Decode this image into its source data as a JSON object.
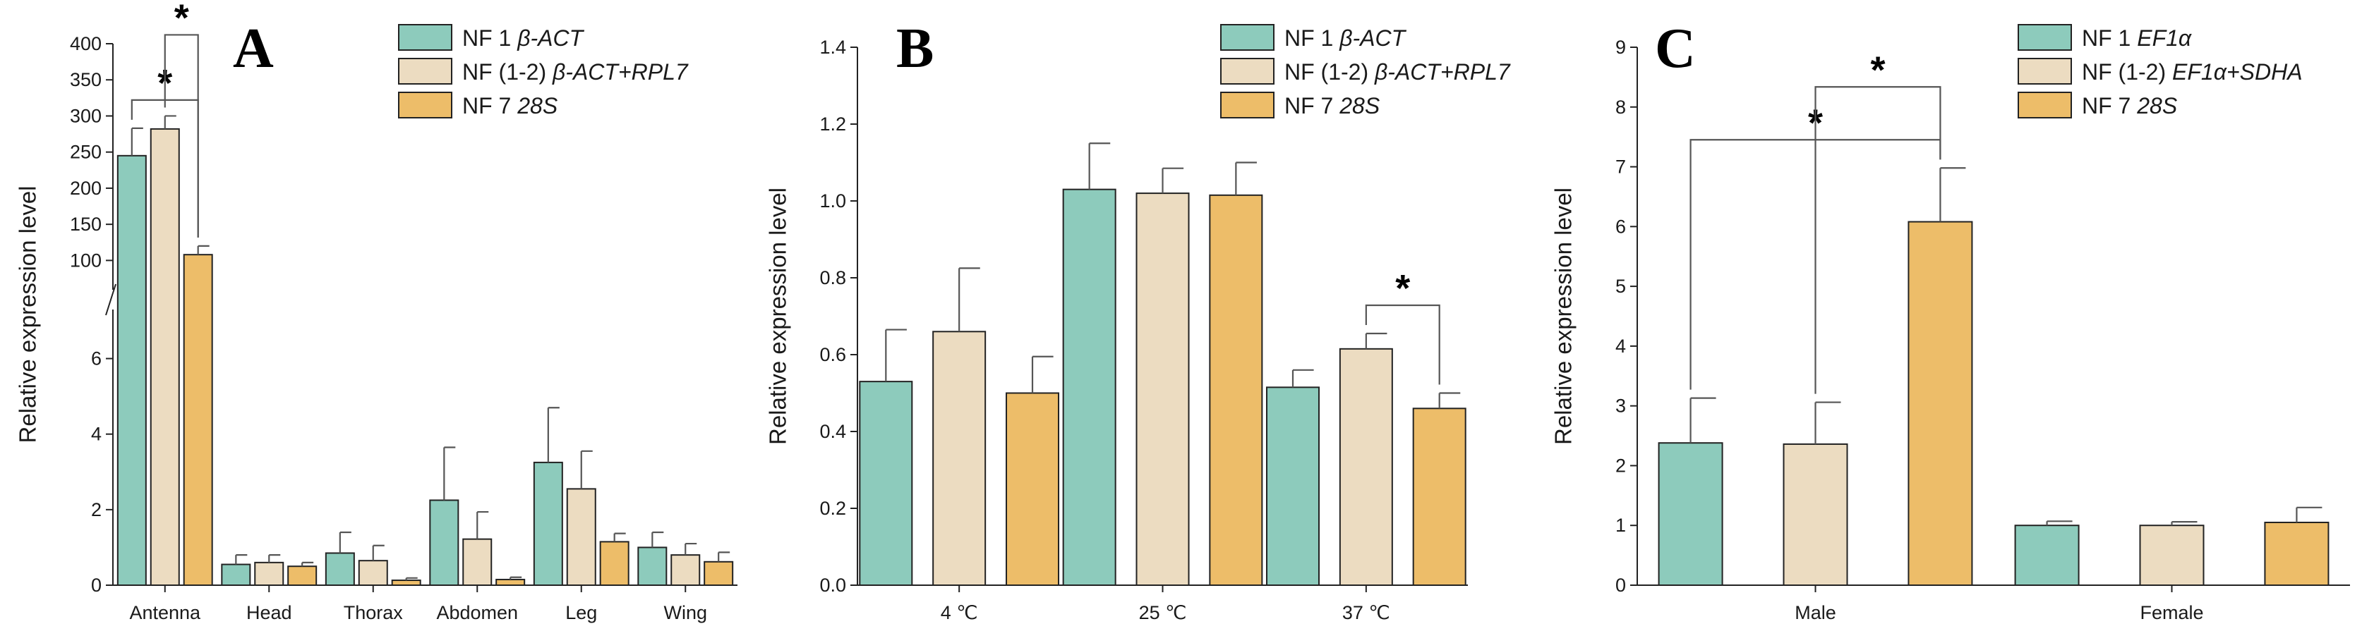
{
  "colors": {
    "series_1": "#8dcbbc",
    "series_2": "#ecdcc1",
    "series_3": "#edbd69",
    "axis": "#222222",
    "error": "#555555"
  },
  "chart_data": [
    {
      "panel": "A",
      "type": "bar",
      "ylabel": "Relative expression level",
      "categories": [
        "Antenna",
        "Head",
        "Thorax",
        "Abdomen",
        "Leg",
        "Wing"
      ],
      "legend": [
        {
          "name": "NF 1",
          "gene": "β-ACT"
        },
        {
          "name": "NF (1-2)",
          "gene": "β-ACT+RPL7"
        },
        {
          "name": "NF 7",
          "gene": "28S"
        }
      ],
      "series": [
        {
          "name": "NF 1",
          "values": [
            245,
            0.55,
            0.85,
            2.25,
            3.25,
            1.0
          ],
          "errors": [
            38,
            0.25,
            0.55,
            1.4,
            1.45,
            0.4
          ]
        },
        {
          "name": "NF (1-2)",
          "values": [
            282,
            0.6,
            0.65,
            1.22,
            2.55,
            0.8
          ],
          "errors": [
            18,
            0.2,
            0.4,
            0.72,
            1.0,
            0.3
          ]
        },
        {
          "name": "NF 7",
          "values": [
            108,
            0.5,
            0.13,
            0.15,
            1.15,
            0.62
          ],
          "errors": [
            12,
            0.1,
            0.06,
            0.06,
            0.22,
            0.25
          ]
        }
      ],
      "y_axis_broken": true,
      "y_lower": {
        "range": [
          0,
          7
        ],
        "ticks": [
          0,
          2,
          4,
          6
        ]
      },
      "y_upper": {
        "range": [
          75,
          400
        ],
        "ticks": [
          100,
          150,
          200,
          250,
          300,
          350,
          400
        ]
      },
      "significance": [
        {
          "label": "*",
          "category": "Antenna",
          "from_series": 0,
          "to_series": 2
        },
        {
          "label": "*",
          "category": "Antenna",
          "from_series": 1,
          "to_series": 2
        }
      ]
    },
    {
      "panel": "B",
      "type": "bar",
      "ylabel": "Relative expression level",
      "categories": [
        "4 ℃",
        "25 ℃",
        "37 ℃"
      ],
      "legend": [
        {
          "name": "NF 1",
          "gene": "β-ACT"
        },
        {
          "name": "NF (1-2)",
          "gene": "β-ACT+RPL7"
        },
        {
          "name": "NF 7",
          "gene": "28S"
        }
      ],
      "series": [
        {
          "name": "NF 1",
          "values": [
            0.53,
            1.03,
            0.515
          ],
          "errors": [
            0.135,
            0.12,
            0.045
          ]
        },
        {
          "name": "NF (1-2)",
          "values": [
            0.66,
            1.02,
            0.615
          ],
          "errors": [
            0.165,
            0.065,
            0.04
          ]
        },
        {
          "name": "NF 7",
          "values": [
            0.5,
            1.015,
            0.46
          ],
          "errors": [
            0.095,
            0.085,
            0.04
          ]
        }
      ],
      "ylim": [
        0,
        1.4
      ],
      "yticks": [
        "0.0",
        "0.2",
        "0.4",
        "0.6",
        "0.8",
        "1.0",
        "1.2",
        "1.4"
      ],
      "significance": [
        {
          "label": "*",
          "category": "37 ℃",
          "from_series": 1,
          "to_series": 2
        }
      ]
    },
    {
      "panel": "C",
      "type": "bar",
      "ylabel": "Relative expression level",
      "categories": [
        "Male",
        "Female"
      ],
      "legend": [
        {
          "name": "NF 1",
          "gene": "EF1α"
        },
        {
          "name": "NF (1-2)",
          "gene": "EF1α+SDHA"
        },
        {
          "name": "NF 7",
          "gene": "28S"
        }
      ],
      "series": [
        {
          "name": "NF 1",
          "values": [
            2.38,
            1.0
          ],
          "errors": [
            0.75,
            0.07
          ]
        },
        {
          "name": "NF (1-2)",
          "values": [
            2.36,
            1.0
          ],
          "errors": [
            0.7,
            0.06
          ]
        },
        {
          "name": "NF 7",
          "values": [
            6.08,
            1.05
          ],
          "errors": [
            0.9,
            0.25
          ]
        }
      ],
      "ylim": [
        0,
        9
      ],
      "yticks": [
        "0",
        "1",
        "2",
        "3",
        "4",
        "5",
        "6",
        "7",
        "8",
        "9"
      ],
      "significance": [
        {
          "label": "*",
          "category": "Male",
          "from_series": 0,
          "to_series": 2
        },
        {
          "label": "*",
          "category": "Male",
          "from_series": 1,
          "to_series": 2
        }
      ]
    }
  ]
}
